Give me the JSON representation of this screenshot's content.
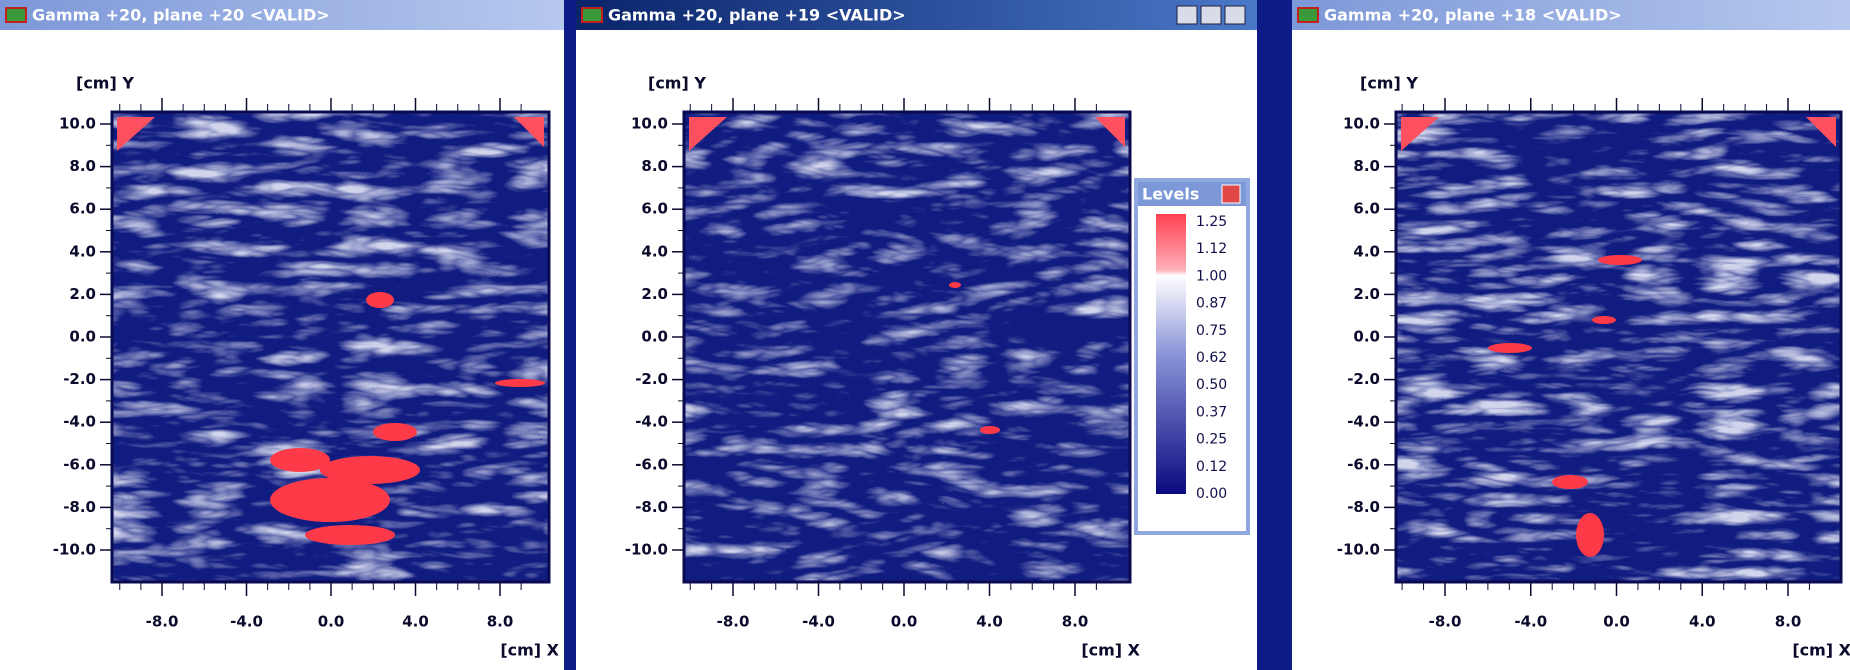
{
  "windows": [
    {
      "title": "Gamma +20, plane +20 <VALID>",
      "y_axis_label": "[cm] Y",
      "x_axis_label": "[cm] X",
      "yticks": [
        "10.0",
        "8.0",
        "6.0",
        "4.0",
        "2.0",
        "0.0",
        "-2.0",
        "-4.0",
        "-6.0",
        "-8.0",
        "-10.0"
      ],
      "xticks": [
        "-8.0",
        "-4.0",
        "0.0",
        "4.0",
        "8.0"
      ]
    },
    {
      "title": "Gamma +20, plane +19 <VALID>",
      "y_axis_label": "[cm] Y",
      "x_axis_label": "[cm] X",
      "yticks": [
        "10.0",
        "8.0",
        "6.0",
        "4.0",
        "2.0",
        "0.0",
        "-2.0",
        "-4.0",
        "-6.0",
        "-8.0",
        "-10.0"
      ],
      "xticks": [
        "-8.0",
        "-4.0",
        "0.0",
        "4.0",
        "8.0"
      ]
    },
    {
      "title": "Gamma +20, plane +18 <VALID>",
      "y_axis_label": "[cm] Y",
      "x_axis_label": "[cm] X",
      "yticks": [
        "10.0",
        "8.0",
        "6.0",
        "4.0",
        "2.0",
        "0.0",
        "-2.0",
        "-4.0",
        "-6.0",
        "-8.0",
        "-10.0"
      ],
      "xticks": [
        "-8.0",
        "-4.0",
        "0.0",
        "4.0",
        "8.0"
      ]
    }
  ],
  "levels": {
    "title": "Levels",
    "values": [
      "1.25",
      "1.12",
      "1.00",
      "0.87",
      "0.75",
      "0.62",
      "0.50",
      "0.37",
      "0.25",
      "0.12",
      "0.00"
    ]
  }
}
